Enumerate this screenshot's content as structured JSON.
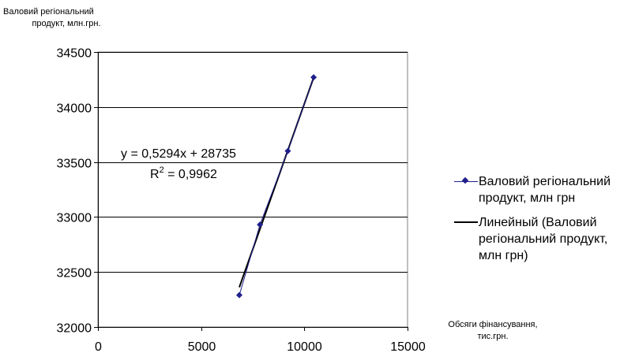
{
  "chart_data": {
    "type": "scatter",
    "ylabel_line1": "Валовий регіональний",
    "ylabel_line2": "продукт, млн.грн.",
    "xlabel_line1": "Обсяги фінансування,",
    "xlabel_line2": "тис.грн.",
    "xlim": [
      0,
      15000
    ],
    "ylim": [
      32000,
      34500
    ],
    "x_ticks": [
      0,
      5000,
      10000,
      15000
    ],
    "y_ticks": [
      32000,
      32500,
      33000,
      33500,
      34000,
      34500
    ],
    "grid": "horizontal",
    "series": [
      {
        "name": "Валовий регіональний продукт,  млн  грн",
        "x": [
          6850,
          7850,
          9200,
          10450
        ],
        "y": [
          32290,
          32930,
          33600,
          34270
        ],
        "color": "#1F1F8C",
        "marker": "diamond"
      }
    ],
    "trendline": {
      "name": "Линейный (Валовий регіональний продукт, млн грн)",
      "slope": 0.5294,
      "intercept": 28735,
      "x_range": [
        6850,
        10450
      ],
      "color": "#000000"
    },
    "equation": "y = 0,5294x + 28735",
    "r2_prefix": "R",
    "r2_sup": "2",
    "r2_value": " = 0,9962",
    "legend_position": "right"
  },
  "legend": {
    "item1_lines": [
      "Валовий регіональний",
      "продукт,  млн  грн"
    ],
    "item2_lines": [
      "Линейный (Валовий",
      "регіональний продукт,",
      "млн грн)"
    ]
  }
}
